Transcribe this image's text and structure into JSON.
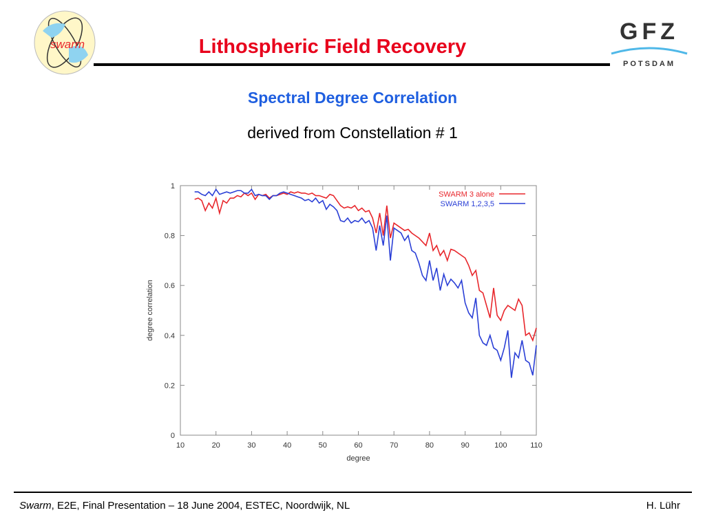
{
  "header": {
    "logo_left": "swarm",
    "title": "Lithospheric Field Recovery",
    "logo_right": "GFZ",
    "logo_right_sub": "POTSDAM"
  },
  "subtitle": "Spectral Degree Correlation",
  "subtitle2": "derived from Constellation # 1",
  "footer": {
    "italic": "Swarm",
    "rest": ", E2E, Final Presentation – 18 June 2004, ESTEC, Noordwijk, NL",
    "author": "H. Lühr"
  },
  "chart_data": {
    "type": "line",
    "x_label": "degree",
    "y_label": "degree correlation",
    "xlim": [
      10,
      110
    ],
    "xticks": [
      10,
      20,
      30,
      40,
      50,
      60,
      70,
      80,
      90,
      100,
      110
    ],
    "ylim": [
      0,
      1
    ],
    "yticks": [
      0,
      0.2,
      0.4,
      0.6,
      0.8,
      1
    ],
    "legend": "upper right",
    "x": [
      14,
      15,
      16,
      17,
      18,
      19,
      20,
      21,
      22,
      23,
      24,
      25,
      26,
      27,
      28,
      29,
      30,
      31,
      32,
      33,
      34,
      35,
      36,
      37,
      38,
      39,
      40,
      41,
      42,
      43,
      44,
      45,
      46,
      47,
      48,
      49,
      50,
      51,
      52,
      53,
      54,
      55,
      56,
      57,
      58,
      59,
      60,
      61,
      62,
      63,
      64,
      65,
      66,
      67,
      68,
      69,
      70,
      71,
      72,
      73,
      74,
      75,
      76,
      77,
      78,
      79,
      80,
      81,
      82,
      83,
      84,
      85,
      86,
      87,
      88,
      89,
      90,
      91,
      92,
      93,
      94,
      95,
      96,
      97,
      98,
      99,
      100,
      101,
      102,
      103,
      104,
      105,
      106,
      107,
      108,
      109,
      110
    ],
    "series": [
      {
        "name": "SWARM 3 alone",
        "color": "#e8262b",
        "values": [
          0.945,
          0.95,
          0.94,
          0.9,
          0.93,
          0.91,
          0.95,
          0.89,
          0.94,
          0.93,
          0.95,
          0.95,
          0.96,
          0.955,
          0.97,
          0.96,
          0.97,
          0.945,
          0.965,
          0.96,
          0.965,
          0.95,
          0.96,
          0.96,
          0.965,
          0.97,
          0.965,
          0.975,
          0.97,
          0.975,
          0.97,
          0.97,
          0.965,
          0.97,
          0.96,
          0.96,
          0.955,
          0.95,
          0.965,
          0.96,
          0.94,
          0.92,
          0.91,
          0.915,
          0.91,
          0.92,
          0.9,
          0.91,
          0.895,
          0.9,
          0.87,
          0.81,
          0.89,
          0.8,
          0.92,
          0.79,
          0.85,
          0.84,
          0.83,
          0.82,
          0.825,
          0.81,
          0.8,
          0.79,
          0.775,
          0.76,
          0.81,
          0.74,
          0.76,
          0.72,
          0.74,
          0.7,
          0.745,
          0.74,
          0.73,
          0.72,
          0.71,
          0.68,
          0.64,
          0.66,
          0.58,
          0.57,
          0.52,
          0.47,
          0.59,
          0.48,
          0.46,
          0.5,
          0.52,
          0.51,
          0.5,
          0.545,
          0.52,
          0.4,
          0.41,
          0.38,
          0.43
        ]
      },
      {
        "name": "SWARM 1,2,3,5",
        "color": "#2a3fd6",
        "values": [
          0.975,
          0.975,
          0.965,
          0.96,
          0.975,
          0.96,
          0.985,
          0.965,
          0.97,
          0.975,
          0.97,
          0.975,
          0.98,
          0.98,
          0.97,
          0.97,
          0.985,
          0.96,
          0.965,
          0.96,
          0.96,
          0.945,
          0.96,
          0.96,
          0.97,
          0.975,
          0.97,
          0.965,
          0.96,
          0.955,
          0.95,
          0.94,
          0.945,
          0.935,
          0.95,
          0.93,
          0.94,
          0.905,
          0.925,
          0.915,
          0.9,
          0.86,
          0.855,
          0.87,
          0.85,
          0.86,
          0.855,
          0.87,
          0.85,
          0.86,
          0.83,
          0.74,
          0.84,
          0.76,
          0.88,
          0.7,
          0.83,
          0.82,
          0.81,
          0.78,
          0.8,
          0.74,
          0.73,
          0.69,
          0.64,
          0.62,
          0.7,
          0.62,
          0.67,
          0.58,
          0.645,
          0.6,
          0.625,
          0.61,
          0.59,
          0.62,
          0.53,
          0.49,
          0.47,
          0.55,
          0.4,
          0.37,
          0.36,
          0.4,
          0.35,
          0.34,
          0.3,
          0.35,
          0.42,
          0.23,
          0.33,
          0.31,
          0.38,
          0.3,
          0.29,
          0.24,
          0.36
        ]
      }
    ]
  }
}
